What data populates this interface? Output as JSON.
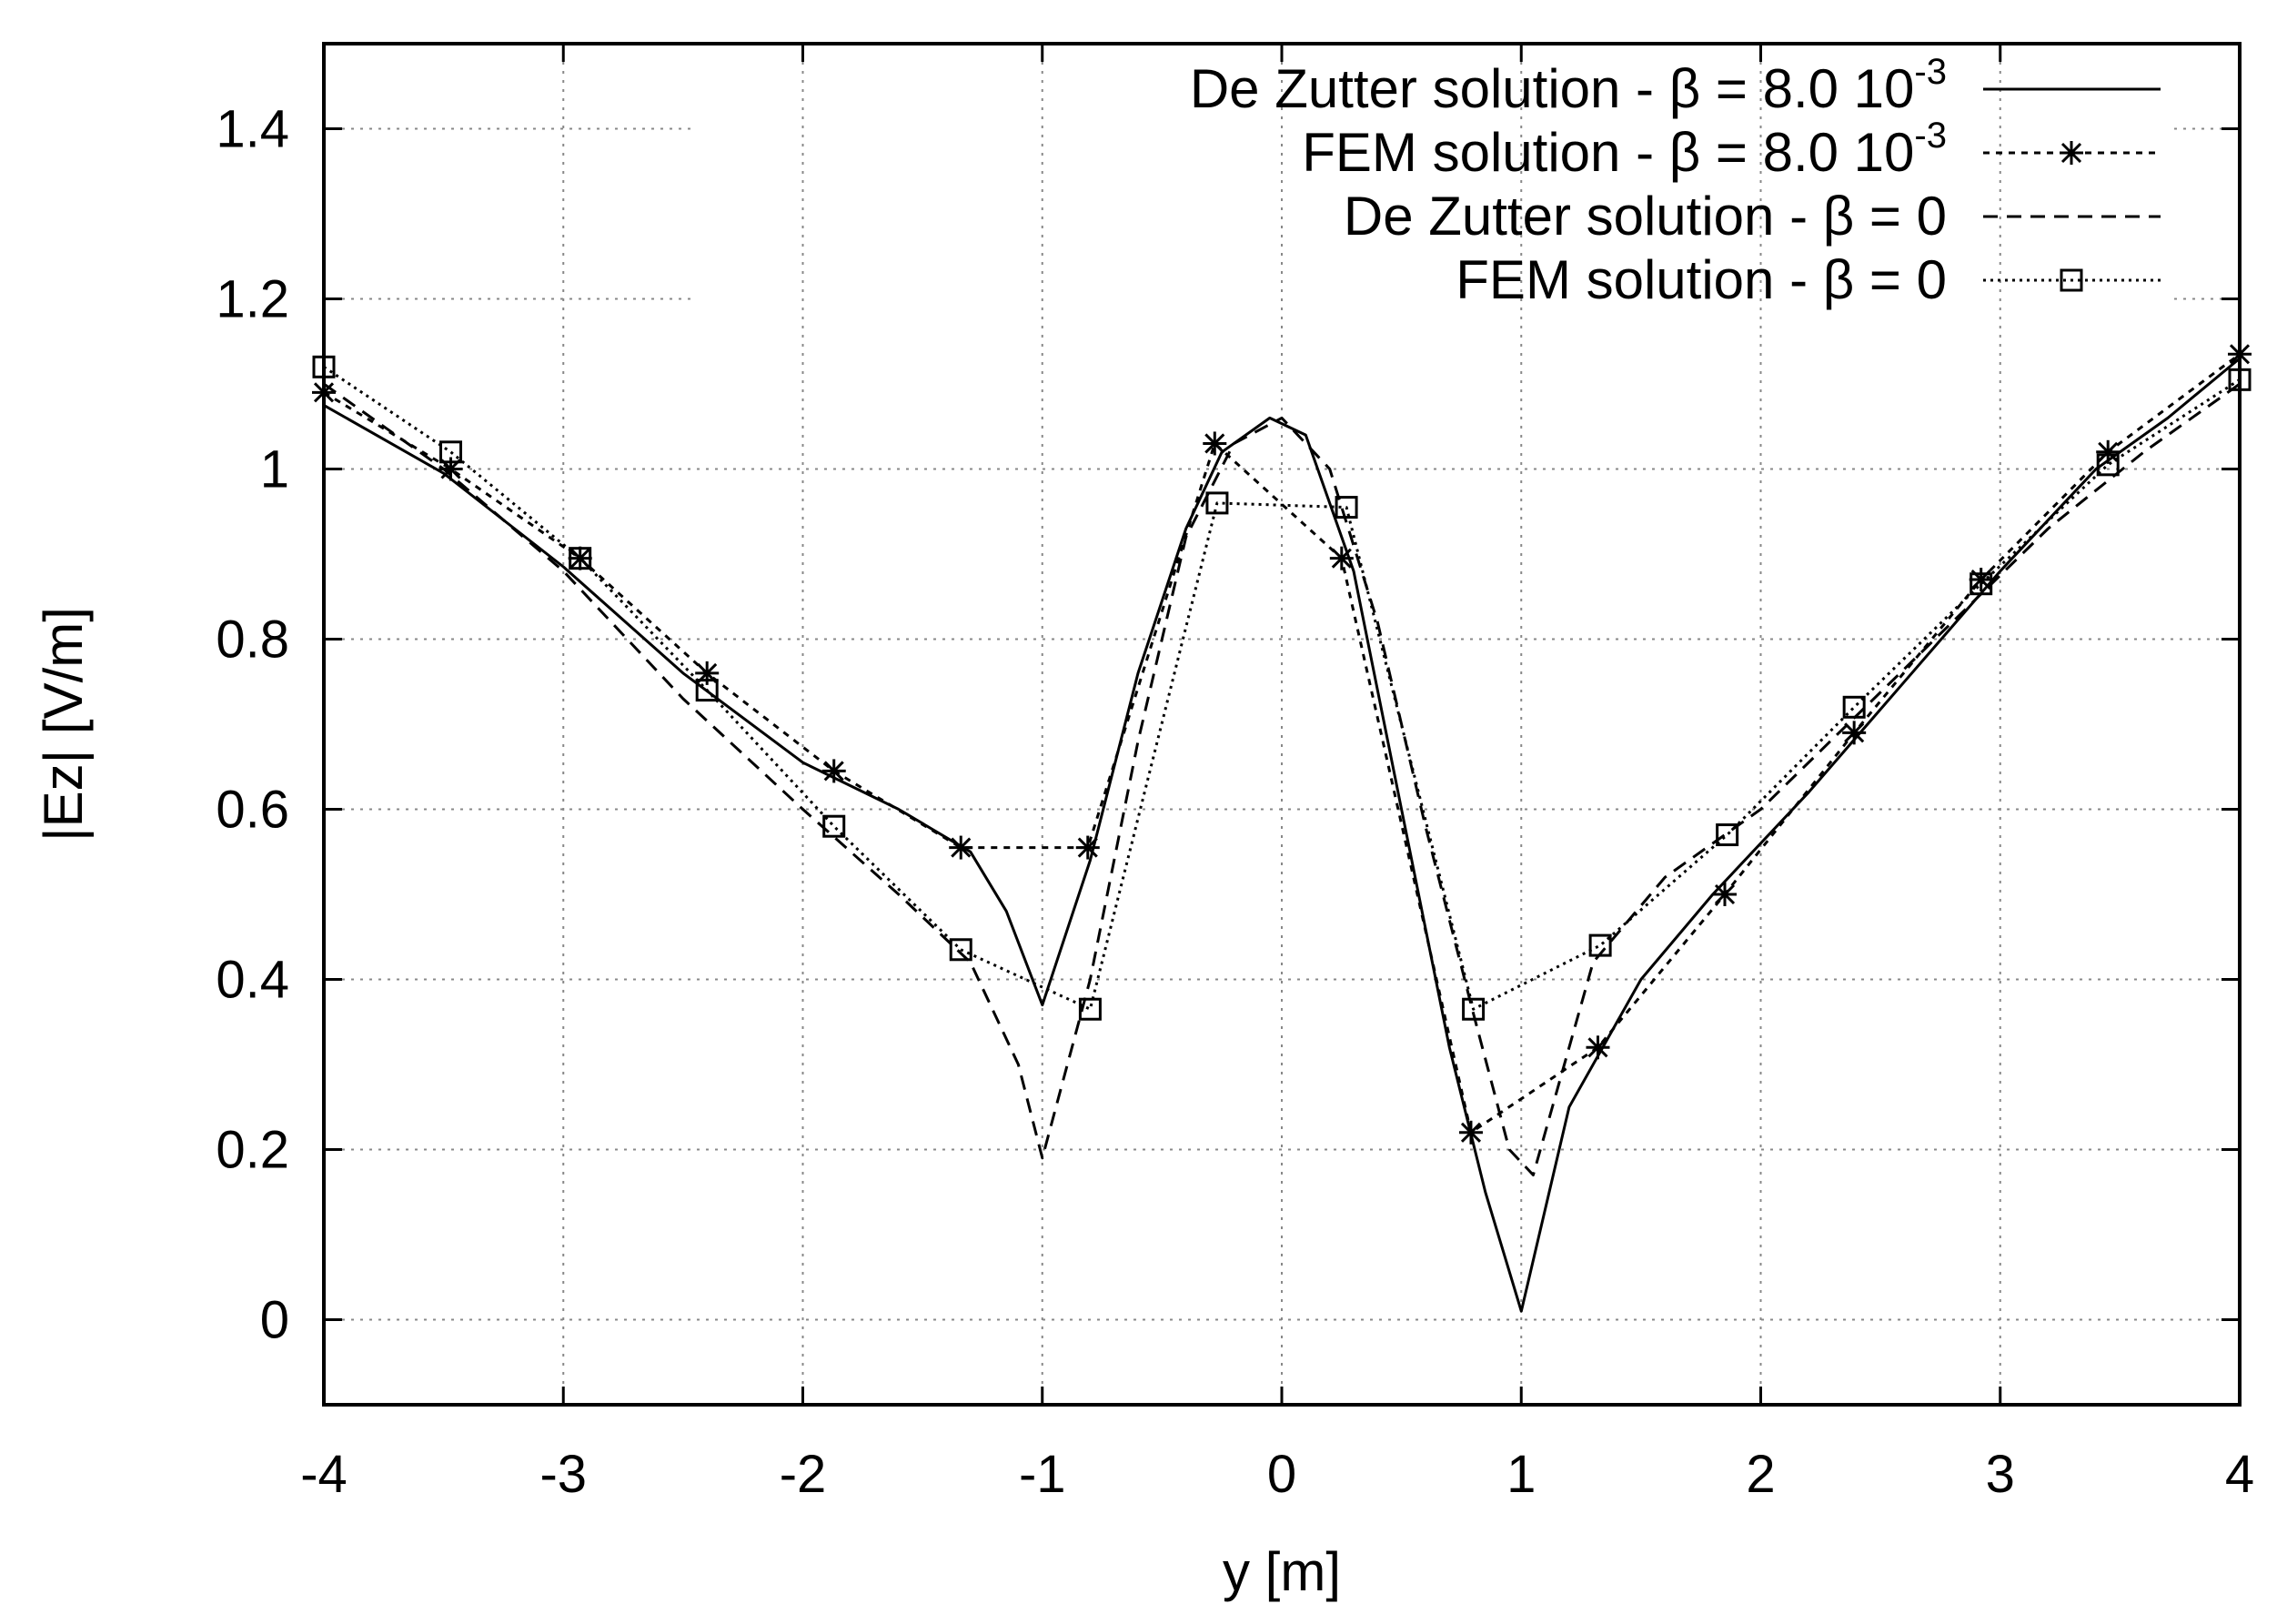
{
  "chart_data": {
    "type": "line",
    "xlabel": "y [m]",
    "ylabel": "|Ez| [V/m]",
    "xlim": [
      -4,
      4
    ],
    "ylim": [
      -0.1,
      1.5
    ],
    "xticks": [
      "-4",
      "-3",
      "-2",
      "-1",
      "0",
      "1",
      "2",
      "3",
      "4"
    ],
    "yticks": [
      "0",
      "0.2",
      "0.4",
      "0.6",
      "0.8",
      "1",
      "1.2",
      "1.4"
    ],
    "grid": true,
    "legend_position": "top-right",
    "series": [
      {
        "name": "De Zutter solution - β = 8.0 10",
        "name_sup": "-3",
        "style": "solid",
        "marker": "none",
        "x": [
          -4,
          -3.5,
          -3,
          -2.5,
          -2,
          -1.6,
          -1.3,
          -1.15,
          -1.0,
          -0.8,
          -0.6,
          -0.4,
          -0.25,
          -0.05,
          0.1,
          0.3,
          0.5,
          0.7,
          0.85,
          1.0,
          1.2,
          1.5,
          1.8,
          2.2,
          2.6,
          3.0,
          3.4,
          3.7,
          4.0
        ],
        "y": [
          1.075,
          0.995,
          0.885,
          0.76,
          0.655,
          0.6,
          0.55,
          0.48,
          0.37,
          0.54,
          0.76,
          0.93,
          1.02,
          1.06,
          1.04,
          0.88,
          0.6,
          0.32,
          0.15,
          0.01,
          0.25,
          0.4,
          0.5,
          0.62,
          0.75,
          0.88,
          1.0,
          1.06,
          1.13
        ]
      },
      {
        "name": "FEM solution - β = 8.0 10",
        "name_sup": "-3",
        "style": "dotted-short",
        "marker": "star",
        "x": [
          -4,
          -3.47,
          -2.93,
          -2.4,
          -1.87,
          -1.34,
          -0.81,
          -0.28,
          0.25,
          0.79,
          1.32,
          1.85,
          2.39,
          2.92,
          3.45,
          4.0
        ],
        "y": [
          1.09,
          1.0,
          0.895,
          0.76,
          0.645,
          0.555,
          0.555,
          1.03,
          0.895,
          0.22,
          0.32,
          0.5,
          0.69,
          0.87,
          1.02,
          1.135
        ]
      },
      {
        "name": "De Zutter solution - β = 0",
        "style": "dashed",
        "marker": "none",
        "x": [
          -4,
          -3.5,
          -3,
          -2.5,
          -2,
          -1.6,
          -1.3,
          -1.1,
          -1.0,
          -0.8,
          -0.6,
          -0.4,
          -0.2,
          0.0,
          0.2,
          0.4,
          0.6,
          0.8,
          0.95,
          1.05,
          1.3,
          1.6,
          2.0,
          2.4,
          2.8,
          3.2,
          3.6,
          4.0
        ],
        "y": [
          1.1,
          1.0,
          0.88,
          0.73,
          0.6,
          0.5,
          0.42,
          0.3,
          0.19,
          0.4,
          0.68,
          0.92,
          1.03,
          1.06,
          1.0,
          0.82,
          0.58,
          0.36,
          0.2,
          0.17,
          0.42,
          0.52,
          0.6,
          0.71,
          0.82,
          0.93,
          1.02,
          1.1
        ]
      },
      {
        "name": "FEM solution - β = 0",
        "style": "dotted",
        "marker": "square",
        "x": [
          -4,
          -3.47,
          -2.93,
          -2.4,
          -1.87,
          -1.34,
          -0.8,
          -0.27,
          0.27,
          0.8,
          1.33,
          1.86,
          2.39,
          2.92,
          3.45,
          4.0
        ],
        "y": [
          1.12,
          1.02,
          0.895,
          0.74,
          0.58,
          0.435,
          0.365,
          0.96,
          0.955,
          0.365,
          0.44,
          0.57,
          0.72,
          0.865,
          1.005,
          1.105
        ]
      }
    ]
  }
}
